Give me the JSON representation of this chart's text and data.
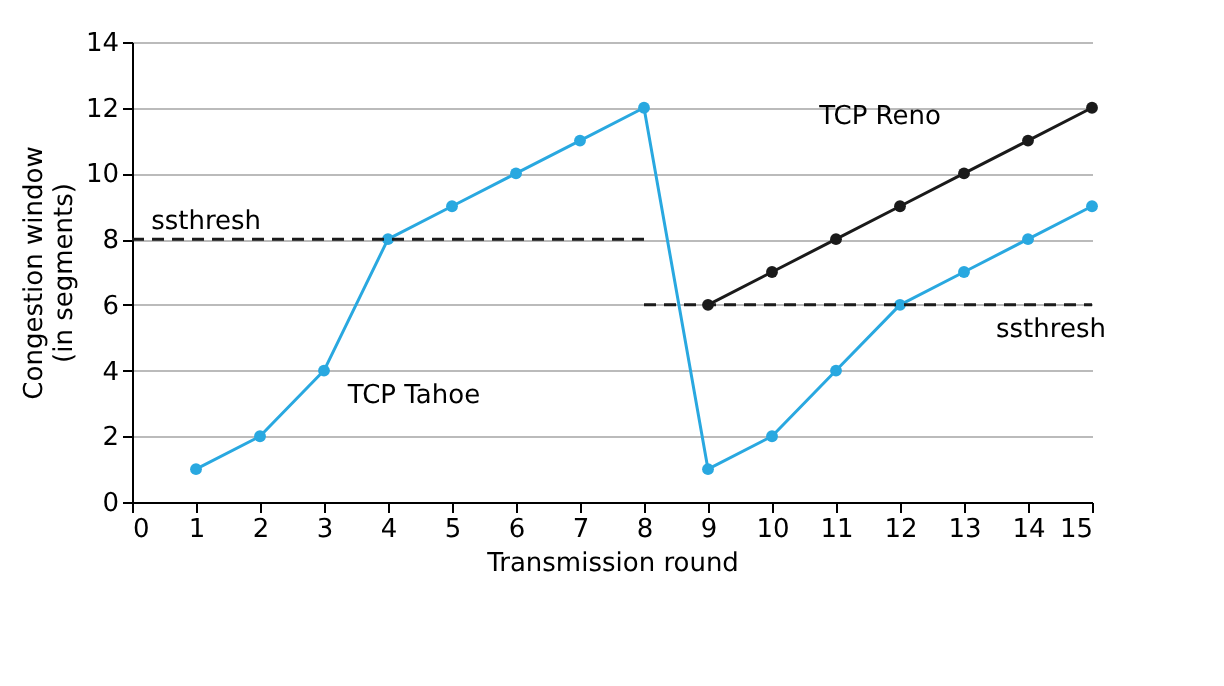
{
  "chart_data": {
    "type": "line",
    "xlabel": "Transmission round",
    "ylabel": "Congestion window\n(in segments)",
    "xlim": [
      0,
      15
    ],
    "xticks": [
      0,
      1,
      2,
      3,
      4,
      5,
      6,
      7,
      8,
      9,
      10,
      11,
      12,
      13,
      14,
      15
    ],
    "ylim": [
      0,
      14
    ],
    "yticks": [
      0,
      2,
      4,
      6,
      8,
      10,
      12,
      14
    ],
    "grid": "y",
    "legend": false,
    "marker": "circle",
    "series": [
      {
        "name": "TCP Tahoe",
        "color": "#29a8e0",
        "x": [
          1,
          2,
          3,
          4,
          5,
          6,
          7,
          8,
          9,
          10,
          11,
          12,
          13,
          14,
          15
        ],
        "values": [
          1,
          2,
          4,
          8,
          9,
          10,
          11,
          12,
          1,
          2,
          4,
          6,
          7,
          8,
          9
        ]
      },
      {
        "name": "TCP Reno",
        "color": "#1a1a1a",
        "x": [
          9,
          10,
          11,
          12,
          13,
          14,
          15
        ],
        "values": [
          6,
          7,
          8,
          9,
          10,
          11,
          12
        ]
      },
      {
        "color": "#1a1a1a",
        "x": [
          0,
          8
        ],
        "values": [
          8,
          8
        ],
        "line_style": "dashed",
        "marker": "none"
      },
      {
        "color": "#1a1a1a",
        "x": [
          8,
          15
        ],
        "values": [
          6,
          6
        ],
        "line_style": "dashed",
        "marker": "none"
      }
    ],
    "annotations": [
      {
        "text": "ssthresh",
        "x": 0.3,
        "y": 8
      },
      {
        "text": "ssthresh",
        "x": 13.5,
        "y": 6
      }
    ]
  }
}
